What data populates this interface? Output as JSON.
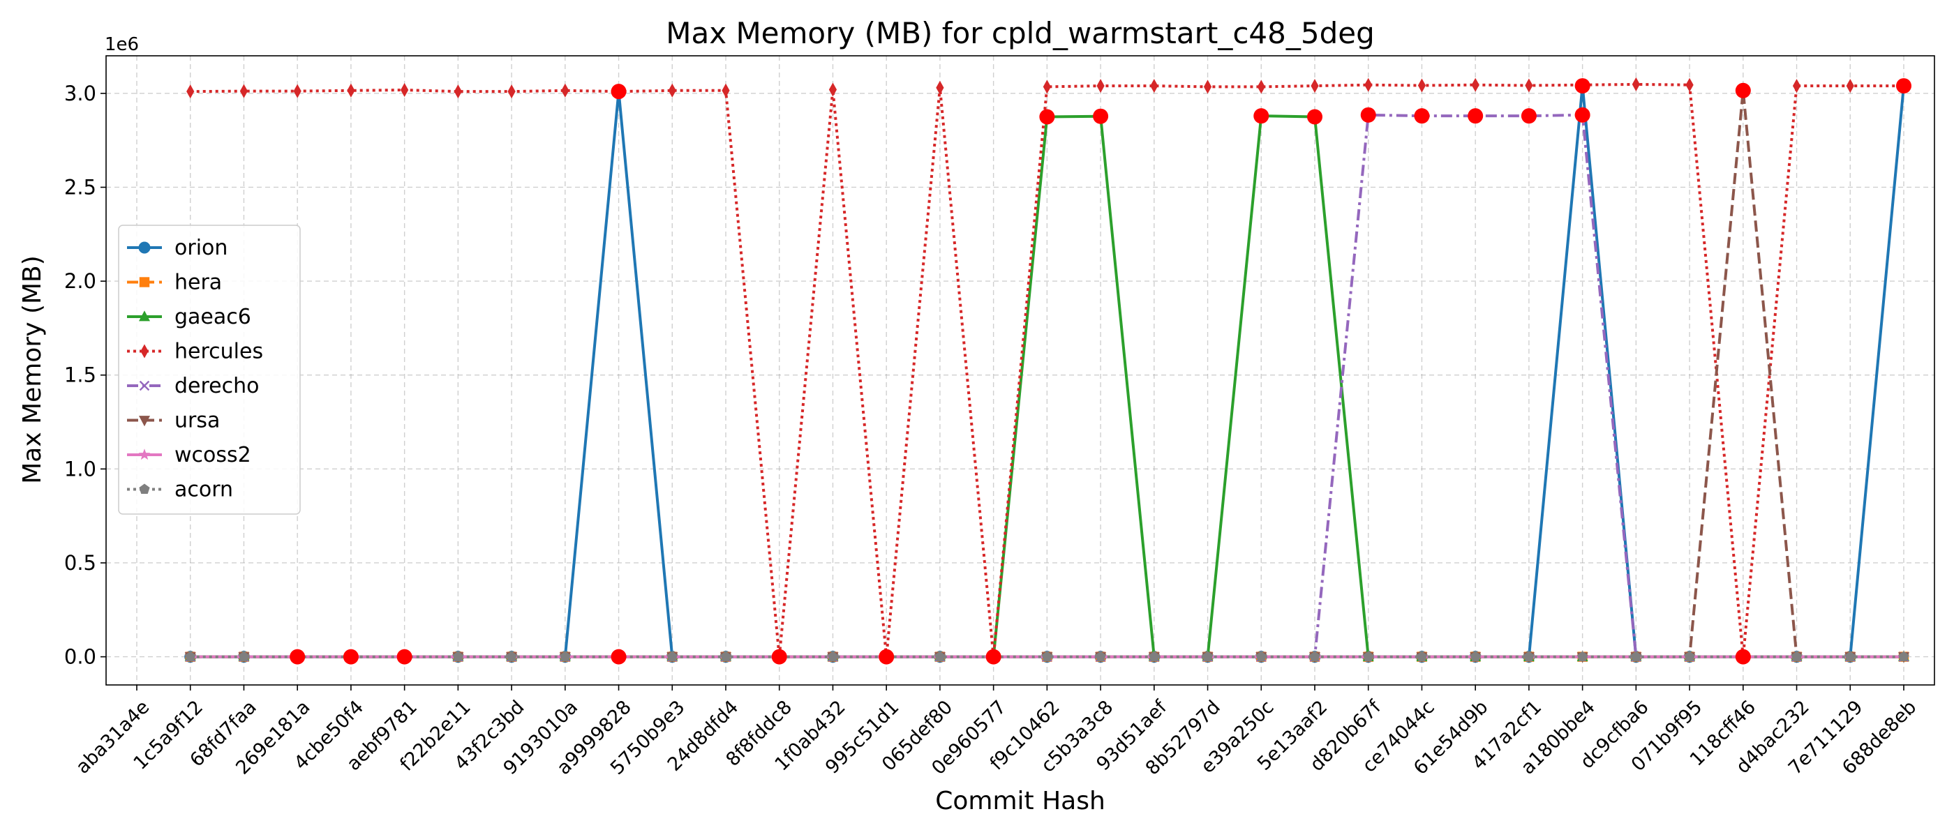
{
  "chart_data": {
    "type": "line",
    "title": "Max Memory (MB) for cpld_warmstart_c48_5deg",
    "xlabel": "Commit Hash",
    "ylabel": "Max Memory (MB)",
    "y_offset_label": "1e6",
    "ylim": [
      -150000,
      3200000
    ],
    "y_ticks": [
      0,
      500000,
      1000000,
      1500000,
      2000000,
      2500000,
      3000000
    ],
    "y_tick_labels": [
      "0.0",
      "0.5",
      "1.0",
      "1.5",
      "2.0",
      "2.5",
      "3.0"
    ],
    "grid": true,
    "legend_position": "center-left",
    "categories": [
      "aba31a4e",
      "1c5a9f12",
      "68fd7faa",
      "269e181a",
      "4cbe50f4",
      "aebf9781",
      "f22b2e11",
      "43f2c3bd",
      "9193010a",
      "a9999828",
      "5750b9e3",
      "24d8dfd4",
      "8f8fddc8",
      "1f0ab432",
      "995c51d1",
      "065def80",
      "0e960577",
      "f9c10462",
      "c5b3a3c8",
      "93d51aef",
      "8b52797d",
      "e39a250c",
      "5e13aaf2",
      "d820b67f",
      "ce74044c",
      "61e54d9b",
      "417a2cf1",
      "a180bbe4",
      "dc9cfba6",
      "071b9f95",
      "118cff46",
      "d4bac232",
      "7e711129",
      "688de8eb"
    ],
    "series": [
      {
        "name": "orion",
        "color": "#1f77b4",
        "dash": "solid",
        "marker": "circle",
        "values": [
          null,
          0,
          0,
          0,
          0,
          0,
          0,
          0,
          0,
          3010000,
          0,
          0,
          0,
          0,
          0,
          0,
          0,
          0,
          0,
          0,
          0,
          0,
          0,
          0,
          0,
          0,
          0,
          3040000,
          0,
          0,
          0,
          0,
          0,
          3040000
        ]
      },
      {
        "name": "hera",
        "color": "#ff7f0e",
        "dash": "dashed",
        "marker": "square",
        "values": [
          null,
          0,
          0,
          0,
          0,
          0,
          0,
          0,
          0,
          0,
          0,
          0,
          0,
          0,
          0,
          0,
          0,
          0,
          0,
          0,
          0,
          0,
          0,
          0,
          0,
          0,
          0,
          0,
          0,
          0,
          0,
          0,
          0,
          0
        ]
      },
      {
        "name": "gaeac6",
        "color": "#2ca02c",
        "dash": "solid",
        "marker": "triangle",
        "values": [
          null,
          0,
          0,
          0,
          0,
          0,
          0,
          0,
          0,
          0,
          0,
          0,
          0,
          0,
          0,
          0,
          0,
          2875000,
          2878000,
          0,
          0,
          2880000,
          2875000,
          0,
          0,
          0,
          0,
          0,
          0,
          0,
          0,
          0,
          0,
          0
        ]
      },
      {
        "name": "hercules",
        "color": "#d62728",
        "dash": "dotted",
        "marker": "diamond",
        "values": [
          null,
          3010000,
          3012000,
          3012000,
          3015000,
          3018000,
          3010000,
          3010000,
          3015000,
          3010000,
          3015000,
          3015000,
          0,
          3020000,
          0,
          3030000,
          0,
          3035000,
          3040000,
          3040000,
          3035000,
          3035000,
          3040000,
          3045000,
          3042000,
          3045000,
          3042000,
          3045000,
          3048000,
          3045000,
          0,
          3040000,
          3040000,
          3040000
        ]
      },
      {
        "name": "derecho",
        "color": "#9467bd",
        "dash": "dashdot",
        "marker": "x",
        "values": [
          null,
          0,
          0,
          0,
          0,
          0,
          0,
          0,
          0,
          0,
          0,
          0,
          0,
          0,
          0,
          0,
          0,
          0,
          0,
          0,
          0,
          0,
          0,
          2885000,
          2880000,
          2880000,
          2880000,
          2885000,
          0,
          0,
          0,
          0,
          0,
          0
        ]
      },
      {
        "name": "ursa",
        "color": "#8c564b",
        "dash": "dashed",
        "marker": "triangle-down",
        "values": [
          null,
          0,
          0,
          0,
          0,
          0,
          0,
          0,
          0,
          0,
          0,
          0,
          0,
          0,
          0,
          0,
          0,
          0,
          0,
          0,
          0,
          0,
          0,
          0,
          0,
          0,
          0,
          0,
          0,
          0,
          3015000,
          0,
          0,
          0
        ]
      },
      {
        "name": "wcoss2",
        "color": "#e377c2",
        "dash": "solid",
        "marker": "star",
        "values": [
          null,
          0,
          0,
          0,
          0,
          0,
          0,
          0,
          0,
          0,
          0,
          0,
          0,
          0,
          0,
          0,
          0,
          0,
          0,
          0,
          0,
          0,
          0,
          0,
          0,
          0,
          0,
          0,
          0,
          0,
          0,
          0,
          0,
          0
        ]
      },
      {
        "name": "acorn",
        "color": "#7f7f7f",
        "dash": "dotted",
        "marker": "pentagon",
        "values": [
          null,
          0,
          0,
          0,
          0,
          0,
          0,
          0,
          0,
          0,
          0,
          0,
          0,
          0,
          0,
          0,
          0,
          0,
          0,
          0,
          0,
          0,
          0,
          0,
          0,
          0,
          0,
          0,
          0,
          0,
          0,
          0,
          0,
          0
        ]
      }
    ],
    "highlight_color": "#ff0000",
    "highlight_points": [
      {
        "x": "269e181a",
        "y": 0
      },
      {
        "x": "4cbe50f4",
        "y": 0
      },
      {
        "x": "aebf9781",
        "y": 0
      },
      {
        "x": "a9999828",
        "y": 3010000
      },
      {
        "x": "a9999828",
        "y": 0
      },
      {
        "x": "8f8fddc8",
        "y": 0
      },
      {
        "x": "995c51d1",
        "y": 0
      },
      {
        "x": "0e960577",
        "y": 0
      },
      {
        "x": "f9c10462",
        "y": 2875000
      },
      {
        "x": "c5b3a3c8",
        "y": 2878000
      },
      {
        "x": "e39a250c",
        "y": 2880000
      },
      {
        "x": "5e13aaf2",
        "y": 2875000
      },
      {
        "x": "d820b67f",
        "y": 2885000
      },
      {
        "x": "ce74044c",
        "y": 2880000
      },
      {
        "x": "61e54d9b",
        "y": 2880000
      },
      {
        "x": "417a2cf1",
        "y": 2880000
      },
      {
        "x": "a180bbe4",
        "y": 3040000
      },
      {
        "x": "a180bbe4",
        "y": 2885000
      },
      {
        "x": "118cff46",
        "y": 3015000
      },
      {
        "x": "118cff46",
        "y": 0
      },
      {
        "x": "688de8eb",
        "y": 3040000
      }
    ]
  }
}
